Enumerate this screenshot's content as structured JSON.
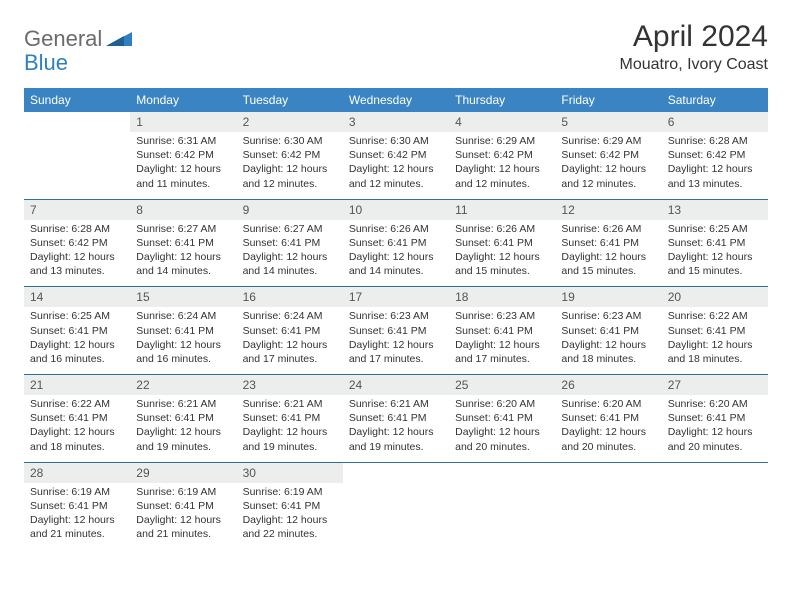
{
  "logo": {
    "part1": "General",
    "part2": "Blue"
  },
  "title": "April 2024",
  "location": "Mouatro, Ivory Coast",
  "colors": {
    "header_bg": "#3a84c4",
    "header_text": "#ffffff",
    "daynum_bg": "#eceded",
    "divider": "#2f7099",
    "text": "#333333",
    "logo_gray": "#6b6b6b",
    "logo_blue": "#2f7fc1"
  },
  "dow": [
    "Sunday",
    "Monday",
    "Tuesday",
    "Wednesday",
    "Thursday",
    "Friday",
    "Saturday"
  ],
  "weeks": [
    [
      null,
      {
        "n": "1",
        "sunrise": "Sunrise: 6:31 AM",
        "sunset": "Sunset: 6:42 PM",
        "day1": "Daylight: 12 hours",
        "day2": "and 11 minutes."
      },
      {
        "n": "2",
        "sunrise": "Sunrise: 6:30 AM",
        "sunset": "Sunset: 6:42 PM",
        "day1": "Daylight: 12 hours",
        "day2": "and 12 minutes."
      },
      {
        "n": "3",
        "sunrise": "Sunrise: 6:30 AM",
        "sunset": "Sunset: 6:42 PM",
        "day1": "Daylight: 12 hours",
        "day2": "and 12 minutes."
      },
      {
        "n": "4",
        "sunrise": "Sunrise: 6:29 AM",
        "sunset": "Sunset: 6:42 PM",
        "day1": "Daylight: 12 hours",
        "day2": "and 12 minutes."
      },
      {
        "n": "5",
        "sunrise": "Sunrise: 6:29 AM",
        "sunset": "Sunset: 6:42 PM",
        "day1": "Daylight: 12 hours",
        "day2": "and 12 minutes."
      },
      {
        "n": "6",
        "sunrise": "Sunrise: 6:28 AM",
        "sunset": "Sunset: 6:42 PM",
        "day1": "Daylight: 12 hours",
        "day2": "and 13 minutes."
      }
    ],
    [
      {
        "n": "7",
        "sunrise": "Sunrise: 6:28 AM",
        "sunset": "Sunset: 6:42 PM",
        "day1": "Daylight: 12 hours",
        "day2": "and 13 minutes."
      },
      {
        "n": "8",
        "sunrise": "Sunrise: 6:27 AM",
        "sunset": "Sunset: 6:41 PM",
        "day1": "Daylight: 12 hours",
        "day2": "and 14 minutes."
      },
      {
        "n": "9",
        "sunrise": "Sunrise: 6:27 AM",
        "sunset": "Sunset: 6:41 PM",
        "day1": "Daylight: 12 hours",
        "day2": "and 14 minutes."
      },
      {
        "n": "10",
        "sunrise": "Sunrise: 6:26 AM",
        "sunset": "Sunset: 6:41 PM",
        "day1": "Daylight: 12 hours",
        "day2": "and 14 minutes."
      },
      {
        "n": "11",
        "sunrise": "Sunrise: 6:26 AM",
        "sunset": "Sunset: 6:41 PM",
        "day1": "Daylight: 12 hours",
        "day2": "and 15 minutes."
      },
      {
        "n": "12",
        "sunrise": "Sunrise: 6:26 AM",
        "sunset": "Sunset: 6:41 PM",
        "day1": "Daylight: 12 hours",
        "day2": "and 15 minutes."
      },
      {
        "n": "13",
        "sunrise": "Sunrise: 6:25 AM",
        "sunset": "Sunset: 6:41 PM",
        "day1": "Daylight: 12 hours",
        "day2": "and 15 minutes."
      }
    ],
    [
      {
        "n": "14",
        "sunrise": "Sunrise: 6:25 AM",
        "sunset": "Sunset: 6:41 PM",
        "day1": "Daylight: 12 hours",
        "day2": "and 16 minutes."
      },
      {
        "n": "15",
        "sunrise": "Sunrise: 6:24 AM",
        "sunset": "Sunset: 6:41 PM",
        "day1": "Daylight: 12 hours",
        "day2": "and 16 minutes."
      },
      {
        "n": "16",
        "sunrise": "Sunrise: 6:24 AM",
        "sunset": "Sunset: 6:41 PM",
        "day1": "Daylight: 12 hours",
        "day2": "and 17 minutes."
      },
      {
        "n": "17",
        "sunrise": "Sunrise: 6:23 AM",
        "sunset": "Sunset: 6:41 PM",
        "day1": "Daylight: 12 hours",
        "day2": "and 17 minutes."
      },
      {
        "n": "18",
        "sunrise": "Sunrise: 6:23 AM",
        "sunset": "Sunset: 6:41 PM",
        "day1": "Daylight: 12 hours",
        "day2": "and 17 minutes."
      },
      {
        "n": "19",
        "sunrise": "Sunrise: 6:23 AM",
        "sunset": "Sunset: 6:41 PM",
        "day1": "Daylight: 12 hours",
        "day2": "and 18 minutes."
      },
      {
        "n": "20",
        "sunrise": "Sunrise: 6:22 AM",
        "sunset": "Sunset: 6:41 PM",
        "day1": "Daylight: 12 hours",
        "day2": "and 18 minutes."
      }
    ],
    [
      {
        "n": "21",
        "sunrise": "Sunrise: 6:22 AM",
        "sunset": "Sunset: 6:41 PM",
        "day1": "Daylight: 12 hours",
        "day2": "and 18 minutes."
      },
      {
        "n": "22",
        "sunrise": "Sunrise: 6:21 AM",
        "sunset": "Sunset: 6:41 PM",
        "day1": "Daylight: 12 hours",
        "day2": "and 19 minutes."
      },
      {
        "n": "23",
        "sunrise": "Sunrise: 6:21 AM",
        "sunset": "Sunset: 6:41 PM",
        "day1": "Daylight: 12 hours",
        "day2": "and 19 minutes."
      },
      {
        "n": "24",
        "sunrise": "Sunrise: 6:21 AM",
        "sunset": "Sunset: 6:41 PM",
        "day1": "Daylight: 12 hours",
        "day2": "and 19 minutes."
      },
      {
        "n": "25",
        "sunrise": "Sunrise: 6:20 AM",
        "sunset": "Sunset: 6:41 PM",
        "day1": "Daylight: 12 hours",
        "day2": "and 20 minutes."
      },
      {
        "n": "26",
        "sunrise": "Sunrise: 6:20 AM",
        "sunset": "Sunset: 6:41 PM",
        "day1": "Daylight: 12 hours",
        "day2": "and 20 minutes."
      },
      {
        "n": "27",
        "sunrise": "Sunrise: 6:20 AM",
        "sunset": "Sunset: 6:41 PM",
        "day1": "Daylight: 12 hours",
        "day2": "and 20 minutes."
      }
    ],
    [
      {
        "n": "28",
        "sunrise": "Sunrise: 6:19 AM",
        "sunset": "Sunset: 6:41 PM",
        "day1": "Daylight: 12 hours",
        "day2": "and 21 minutes."
      },
      {
        "n": "29",
        "sunrise": "Sunrise: 6:19 AM",
        "sunset": "Sunset: 6:41 PM",
        "day1": "Daylight: 12 hours",
        "day2": "and 21 minutes."
      },
      {
        "n": "30",
        "sunrise": "Sunrise: 6:19 AM",
        "sunset": "Sunset: 6:41 PM",
        "day1": "Daylight: 12 hours",
        "day2": "and 22 minutes."
      },
      null,
      null,
      null,
      null
    ]
  ]
}
